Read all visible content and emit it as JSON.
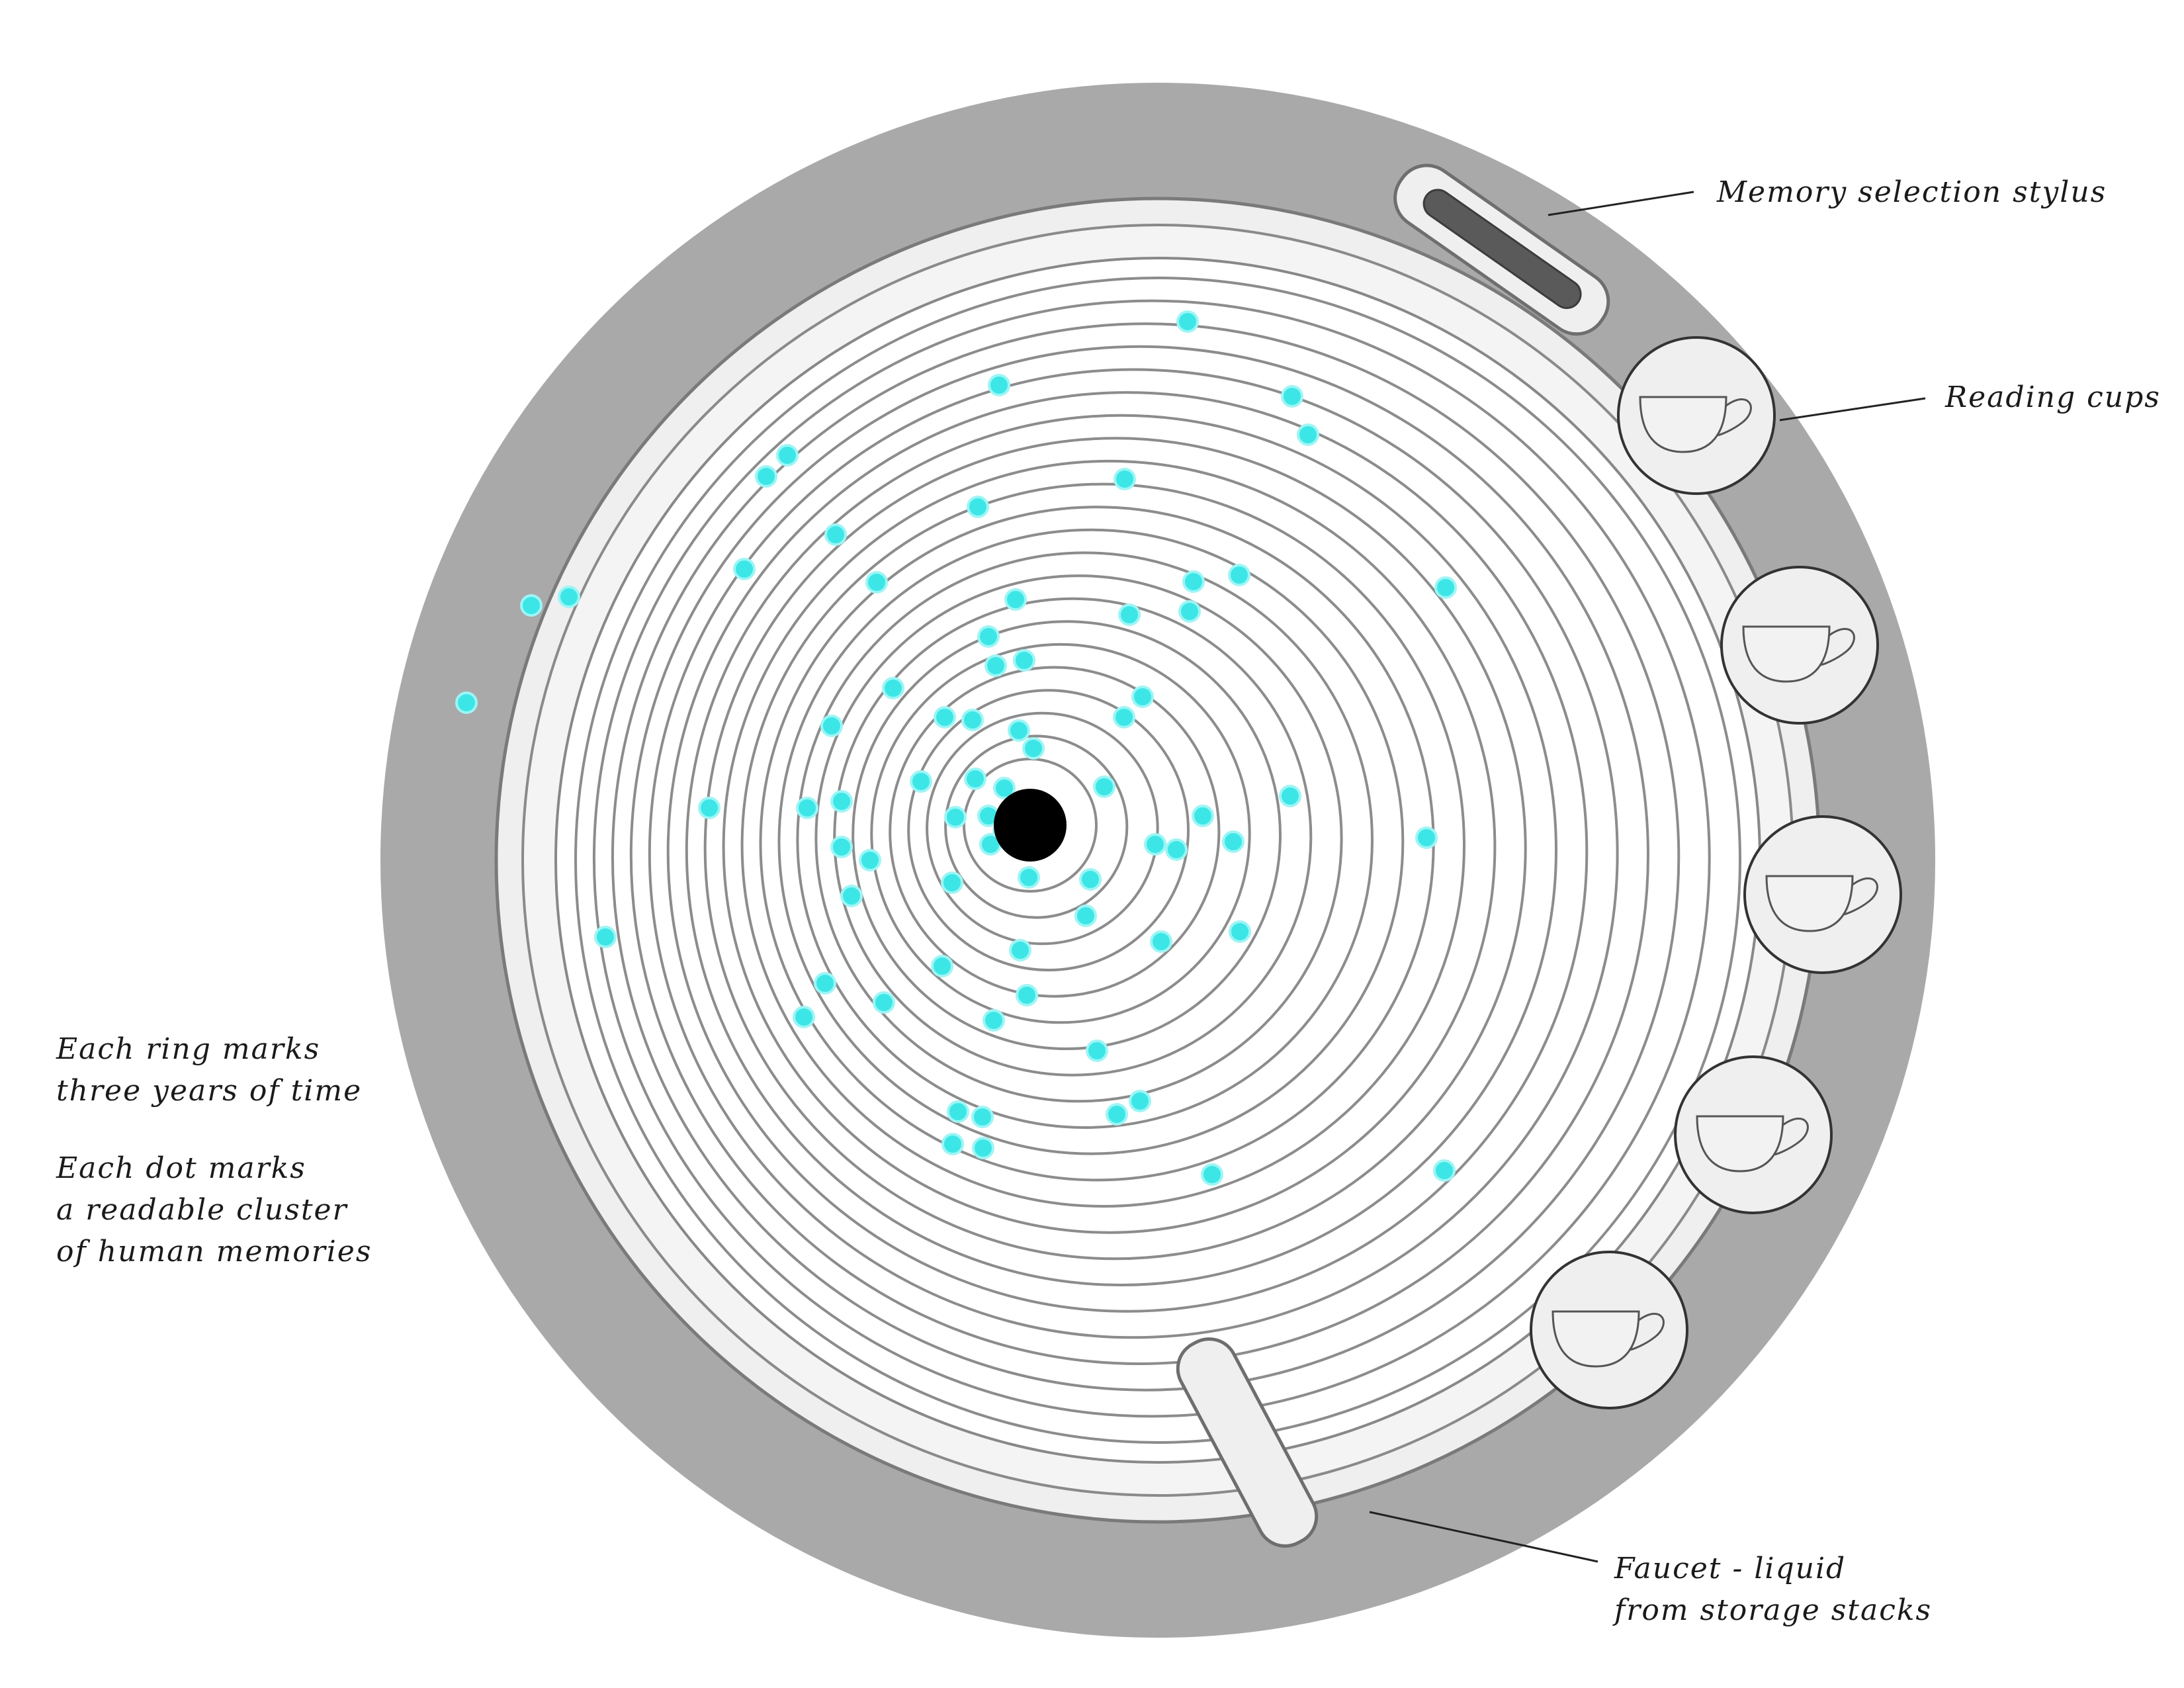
{
  "labels": {
    "stylus": "Memory selection stylus",
    "cups": "Reading cups",
    "faucet_line1": "Faucet - liquid",
    "faucet_line2": "from storage stacks",
    "legend_ring_line1": "Each ring marks",
    "legend_ring_line2": "three years of time",
    "legend_dot_line1": "Each dot marks",
    "legend_dot_line2": "a readable cluster",
    "legend_dot_line3": "of human memories"
  },
  "colors": {
    "housing": "#a9a9a9",
    "rim": "#f0f0f0",
    "ring_line": "#8c8c8c",
    "disc": "#ffffff",
    "memory_dot": "#3de6e6",
    "spindle": "#000000",
    "cup_plate": "#efefef",
    "stylus_slot": "#5a5a5a"
  },
  "icons": {
    "cup": "teacup-icon",
    "spindle": "spindle-hole",
    "stylus": "stylus-slot",
    "faucet": "faucet-arm"
  }
}
